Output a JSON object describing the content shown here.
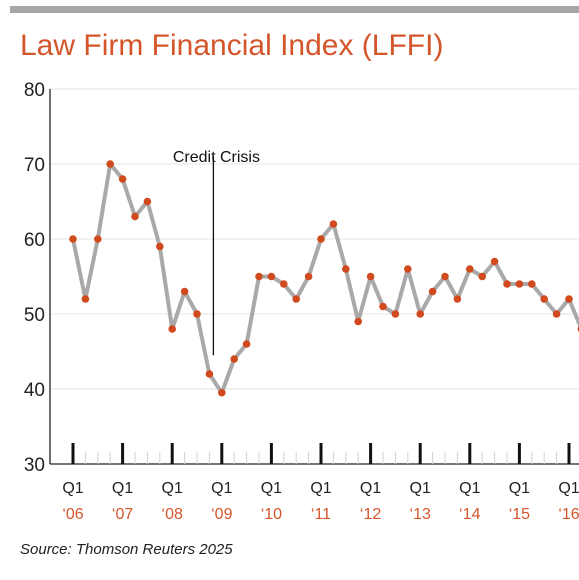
{
  "chart_data": {
    "type": "line",
    "title": "Law Firm Financial Index (LFFI)",
    "xlabel": "",
    "ylabel": "",
    "ylim": [
      30,
      80
    ],
    "yticks": [
      30,
      40,
      50,
      60,
      70,
      80
    ],
    "grid": true,
    "legend": "none",
    "x_tick_quarter_labels": [
      "Q1",
      "Q1",
      "Q1",
      "Q1",
      "Q1",
      "Q1",
      "Q1",
      "Q1",
      "Q1",
      "Q1",
      "Q1"
    ],
    "x_tick_year_labels": [
      "‘06",
      "‘07",
      "‘08",
      "‘09",
      "‘10",
      "‘11",
      "‘12",
      "‘13",
      "‘14",
      "‘15",
      "‘16"
    ],
    "x": [
      "Q1 2006",
      "Q2 2006",
      "Q3 2006",
      "Q4 2006",
      "Q1 2007",
      "Q2 2007",
      "Q3 2007",
      "Q4 2007",
      "Q1 2008",
      "Q2 2008",
      "Q3 2008",
      "Q4 2008",
      "Q1 2009",
      "Q2 2009",
      "Q3 2009",
      "Q4 2009",
      "Q1 2010",
      "Q2 2010",
      "Q3 2010",
      "Q4 2010",
      "Q1 2011",
      "Q2 2011",
      "Q3 2011",
      "Q4 2011",
      "Q1 2012",
      "Q2 2012",
      "Q3 2012",
      "Q4 2012",
      "Q1 2013",
      "Q2 2013",
      "Q3 2013",
      "Q4 2013",
      "Q1 2014",
      "Q2 2014",
      "Q3 2014",
      "Q4 2014",
      "Q1 2015",
      "Q2 2015",
      "Q3 2015",
      "Q4 2015",
      "Q1 2016",
      "Q2 2016"
    ],
    "series": [
      {
        "values": [
          60,
          52,
          60,
          70,
          68,
          63,
          65,
          59,
          48,
          53,
          50,
          42,
          39.5,
          44,
          46,
          55,
          55,
          54,
          52,
          55,
          60,
          62,
          56,
          49,
          55,
          51,
          50,
          56,
          50,
          53,
          55,
          52,
          56,
          55,
          57,
          54,
          54,
          54,
          52,
          50,
          52,
          48
        ]
      }
    ],
    "annotations": [
      {
        "text": "Credit Crisis",
        "x": "Q4 2008",
        "y_from": 71,
        "y_to": 44.5
      }
    ],
    "colors": {
      "line": "#a9a9a9",
      "marker": "#d04a1e",
      "year_labels": "#d4552a",
      "title": "#d4552a",
      "grid": "#e6e6e6",
      "axis": "#222222",
      "header_rule": "#a7a7a7"
    }
  },
  "source": "Source: Thomson Reuters 2025"
}
